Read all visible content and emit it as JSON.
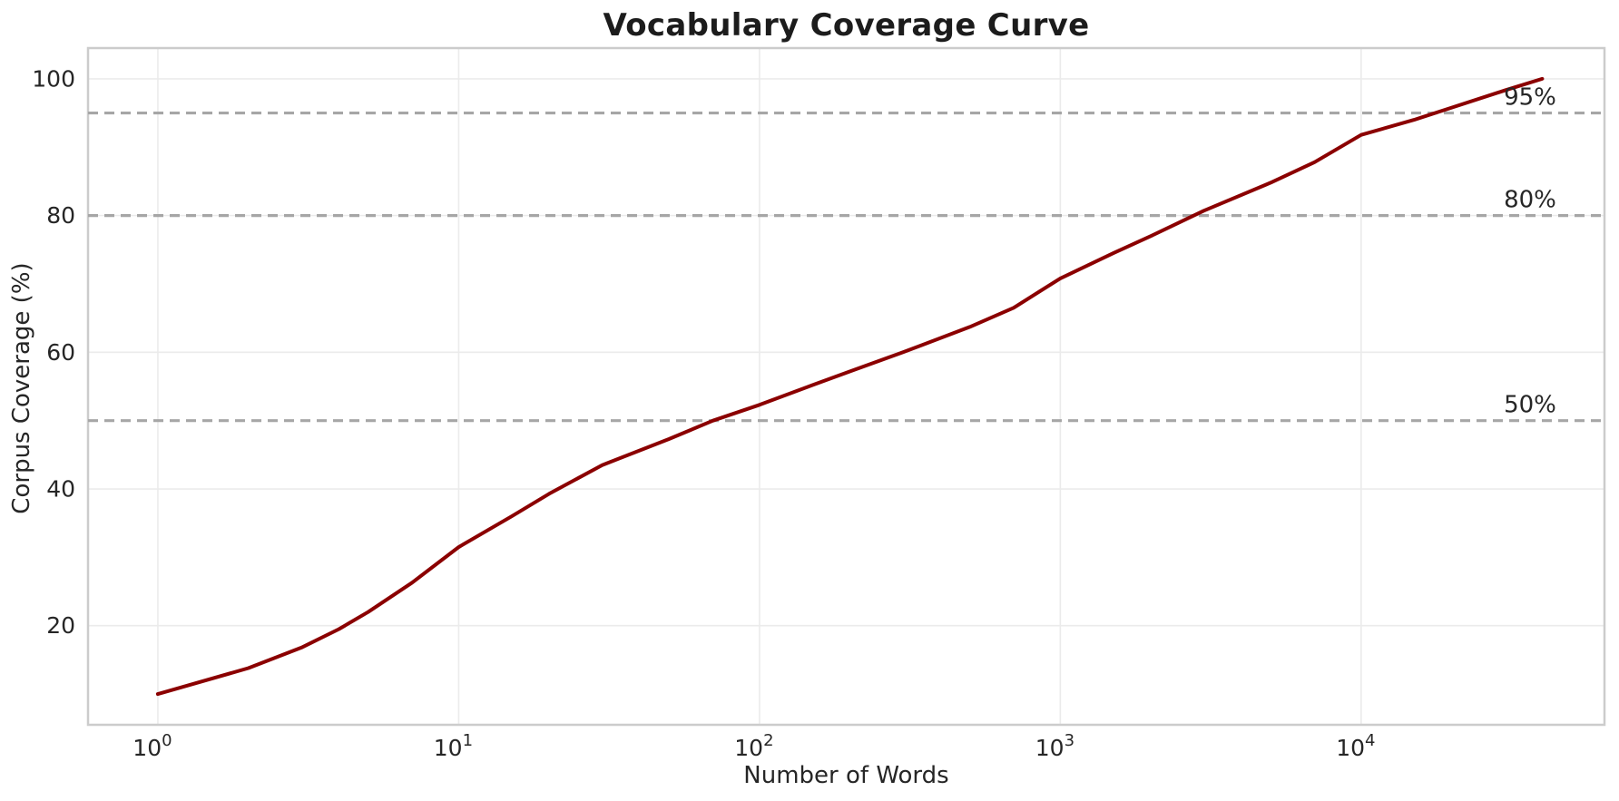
{
  "chart_data": {
    "type": "line",
    "title": "Vocabulary Coverage Curve",
    "xlabel": "Number of Words",
    "ylabel": "Corpus Coverage (%)",
    "x_scale": "log",
    "xlim": [
      0.586,
      64400
    ],
    "ylim": [
      5.5,
      104.5
    ],
    "grid": true,
    "legend": "none",
    "background_color": "#ffffff",
    "grid_color": "#ebebeb",
    "spine_color": "#cccccc",
    "text_color": "#262626",
    "x_ticks": [
      {
        "value": 1,
        "base": "10",
        "exp": "0"
      },
      {
        "value": 10,
        "base": "10",
        "exp": "1"
      },
      {
        "value": 100,
        "base": "10",
        "exp": "2"
      },
      {
        "value": 1000,
        "base": "10",
        "exp": "3"
      },
      {
        "value": 10000,
        "base": "10",
        "exp": "4"
      }
    ],
    "y_ticks": [
      {
        "value": 20,
        "label": "20"
      },
      {
        "value": 40,
        "label": "40"
      },
      {
        "value": 60,
        "label": "60"
      },
      {
        "value": 80,
        "label": "80"
      },
      {
        "value": 100,
        "label": "100"
      }
    ],
    "series": [
      {
        "name": "coverage-curve",
        "color": "#8B0000",
        "line_width": 4,
        "x": [
          1,
          2,
          3,
          4,
          5,
          7,
          10,
          15,
          20,
          30,
          50,
          70,
          100,
          150,
          200,
          300,
          500,
          700,
          1000,
          1500,
          2000,
          3000,
          5000,
          7000,
          10000,
          15000,
          20000,
          30000,
          40000
        ],
        "y": [
          10,
          13.8,
          16.8,
          19.5,
          22,
          26.3,
          31.5,
          36,
          39.3,
          43.5,
          47.3,
          50,
          52.3,
          55.2,
          57.2,
          60,
          63.7,
          66.5,
          70.8,
          74.5,
          77,
          80.7,
          84.8,
          87.8,
          91.8,
          94,
          95.8,
          98.3,
          100
        ]
      }
    ],
    "thresholds": [
      {
        "label": "50%",
        "value": 50
      },
      {
        "label": "80%",
        "value": 80
      },
      {
        "label": "95%",
        "value": 95
      }
    ],
    "threshold_color": "#a6a6a6",
    "threshold_label_color": "#262626"
  }
}
